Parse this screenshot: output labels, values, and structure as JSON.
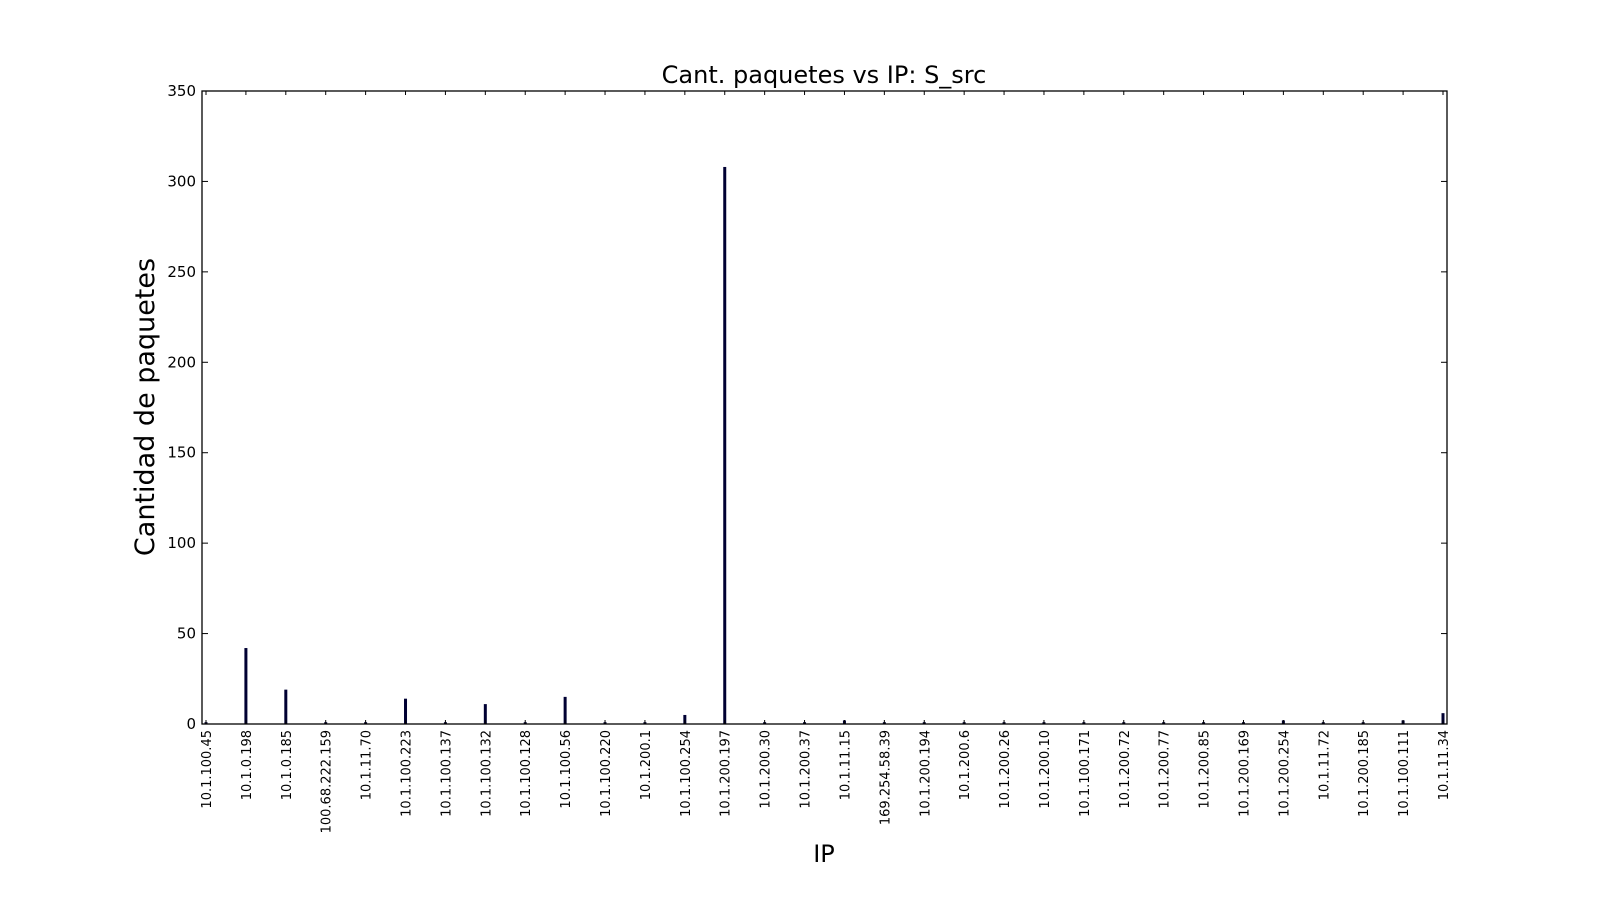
{
  "chart_data": {
    "type": "bar",
    "title": "Cant. paquetes vs IP: S_src",
    "xlabel": "IP",
    "ylabel": "Cantidad de paquetes",
    "ylim": [
      0,
      350
    ],
    "yticks": [
      0,
      50,
      100,
      150,
      200,
      250,
      300,
      350
    ],
    "categories": [
      "10.1.100.45",
      "10.1.0.198",
      "10.1.0.185",
      "100.68.222.159",
      "10.1.11.70",
      "10.1.100.223",
      "10.1.100.137",
      "10.1.100.132",
      "10.1.100.128",
      "10.1.100.56",
      "10.1.100.220",
      "10.1.200.1",
      "10.1.100.254",
      "10.1.200.197",
      "10.1.200.30",
      "10.1.200.37",
      "10.1.11.15",
      "169.254.58.39",
      "10.1.200.194",
      "10.1.200.6",
      "10.1.200.26",
      "10.1.200.10",
      "10.1.100.171",
      "10.1.200.72",
      "10.1.200.77",
      "10.1.200.85",
      "10.1.200.169",
      "10.1.200.254",
      "10.1.11.72",
      "10.1.200.185",
      "10.1.100.111",
      "10.1.11.34"
    ],
    "values": [
      1,
      42,
      19,
      1,
      1,
      14,
      1,
      11,
      1,
      15,
      1,
      1,
      5,
      308,
      1,
      1,
      2,
      1,
      1,
      1,
      1,
      1,
      1,
      1,
      1,
      1,
      1,
      2,
      1,
      1,
      2,
      6
    ],
    "bar_color": "#000033",
    "grid": false,
    "legend": "none"
  }
}
